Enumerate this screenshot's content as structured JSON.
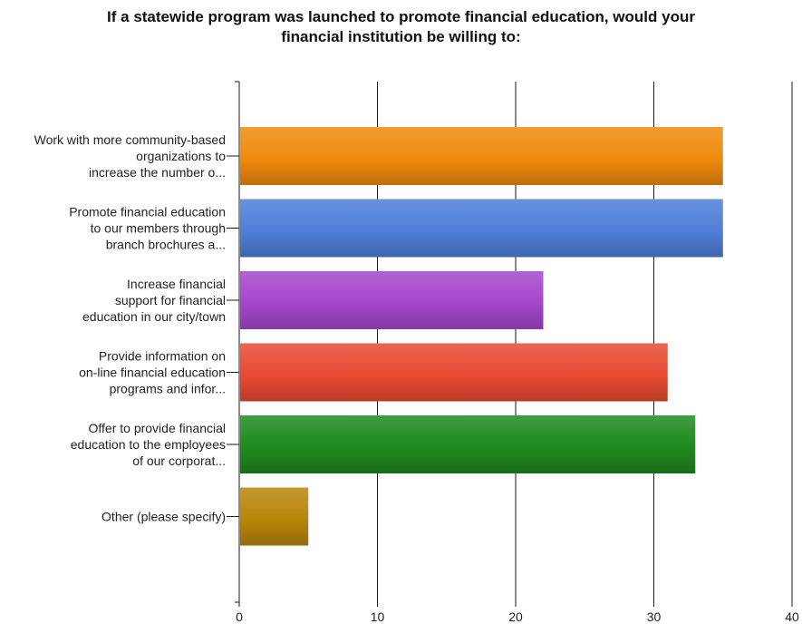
{
  "chart_data": {
    "type": "bar",
    "orientation": "horizontal",
    "title_lines": [
      "If a statewide program was launched to promote financial education, would your",
      "financial institution be willing to:"
    ],
    "categories": [
      [
        "Work with more community-based",
        "organizations to",
        "increase the number o..."
      ],
      [
        "Promote financial education",
        "to our members through",
        "branch brochures a..."
      ],
      [
        "Increase financial",
        "support for financial",
        "education in our city/town"
      ],
      [
        "Provide information on",
        "on-line financial education",
        "programs and infor..."
      ],
      [
        "Offer to provide financial",
        "education to the employees",
        "of our corporat..."
      ],
      [
        "Other (please specify)"
      ]
    ],
    "values": [
      35,
      35,
      22,
      31,
      33,
      5
    ],
    "colors": [
      "#f08a0c",
      "#4f7fd8",
      "#a646cc",
      "#e84a32",
      "#1f8a1f",
      "#b8860b"
    ],
    "xlim": [
      0,
      40
    ],
    "xticks": [
      0,
      10,
      20,
      30,
      40
    ],
    "grid": true,
    "legend": "none"
  }
}
